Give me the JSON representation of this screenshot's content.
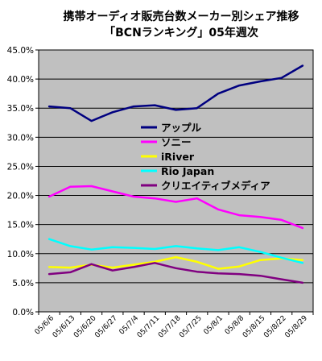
{
  "chart_data": {
    "type": "line",
    "title": [
      "携帯オーディオ販売台数メーカー別シェア推移",
      "「BCNランキング」05年週次"
    ],
    "xlabel": "",
    "ylabel": "",
    "categories": [
      "05/6/6",
      "05/6/13",
      "05/6/20",
      "05/6/27",
      "05/7/4",
      "05/7/11",
      "05/7/18",
      "05/7/25",
      "05/8/1",
      "05/8/8",
      "05/8/15",
      "05/8/22",
      "05/8/29"
    ],
    "ylim": [
      0,
      45
    ],
    "yticks": [
      "0.0%",
      "5.0%",
      "10.0%",
      "15.0%",
      "20.0%",
      "25.0%",
      "30.0%",
      "35.0%",
      "40.0%",
      "45.0%"
    ],
    "grid": "horizontal",
    "background_color": "#c0c0c0",
    "legend_position": "center-right",
    "series": [
      {
        "name": "アップル",
        "color": "#000080",
        "values": [
          35.3,
          35.0,
          32.8,
          34.3,
          35.3,
          35.5,
          34.7,
          35.0,
          37.5,
          38.9,
          39.6,
          40.2,
          42.3
        ]
      },
      {
        "name": "ソニー",
        "color": "#ff00ff",
        "values": [
          19.8,
          21.5,
          21.6,
          20.7,
          19.8,
          19.5,
          18.9,
          19.5,
          17.6,
          16.6,
          16.3,
          15.8,
          14.4
        ]
      },
      {
        "name": "iRiver",
        "color": "#ffff00",
        "values": [
          7.7,
          7.6,
          8.1,
          7.6,
          8.1,
          8.6,
          9.4,
          8.6,
          7.4,
          7.8,
          8.9,
          9.2,
          8.9
        ]
      },
      {
        "name": "Rio Japan",
        "color": "#00ffff",
        "values": [
          12.5,
          11.3,
          10.7,
          11.1,
          11.0,
          10.8,
          11.3,
          10.9,
          10.6,
          11.1,
          10.3,
          9.3,
          8.4
        ]
      },
      {
        "name": "クリエイティブメディア",
        "color": "#800080",
        "values": [
          6.5,
          6.8,
          8.2,
          7.1,
          7.7,
          8.4,
          7.5,
          6.9,
          6.6,
          6.5,
          6.2,
          5.6,
          5.0
        ]
      }
    ]
  }
}
